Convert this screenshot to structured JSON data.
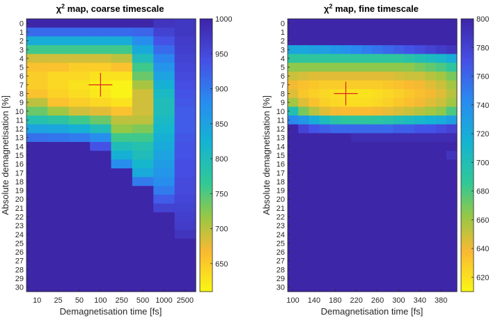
{
  "chart_data": [
    {
      "type": "heatmap",
      "title_symbol": "χ",
      "title_sup": "2",
      "title_rest": " map, coarse timescale",
      "xlabel": "Demagnetisation time [fs]",
      "ylabel": "Absolute demagnetisation [%]",
      "x_ticks": [
        "10",
        "25",
        "50",
        "100",
        "250",
        "500",
        "1000",
        "2500"
      ],
      "y_ticks": [
        "0",
        "1",
        "2",
        "3",
        "4",
        "5",
        "6",
        "7",
        "8",
        "9",
        "10",
        "11",
        "12",
        "13",
        "14",
        "15",
        "16",
        "17",
        "18",
        "19",
        "20",
        "21",
        "22",
        "23",
        "24",
        "25",
        "26",
        "27",
        "28",
        "29",
        "30"
      ],
      "colorbar": {
        "min": 610,
        "max": 1000,
        "ticks": [
          "650",
          "700",
          "750",
          "800",
          "850",
          "900",
          "950",
          "1000"
        ]
      },
      "marker": {
        "x_index": 3,
        "y_index": 7,
        "color": "#e02020"
      },
      "z": [
        [
          1000,
          1000,
          1000,
          1000,
          1000,
          1000,
          980,
          975
        ],
        [
          915,
          915,
          915,
          915,
          915,
          920,
          960,
          975
        ],
        [
          835,
          835,
          835,
          835,
          835,
          880,
          940,
          970
        ],
        [
          760,
          760,
          760,
          760,
          760,
          840,
          915,
          965
        ],
        [
          690,
          690,
          690,
          690,
          700,
          800,
          890,
          960
        ],
        [
          660,
          660,
          650,
          650,
          660,
          760,
          870,
          955
        ],
        [
          650,
          640,
          640,
          630,
          630,
          740,
          850,
          950
        ],
        [
          650,
          640,
          630,
          620,
          615,
          710,
          830,
          945
        ],
        [
          660,
          645,
          635,
          625,
          615,
          690,
          810,
          940
        ],
        [
          700,
          660,
          650,
          640,
          630,
          690,
          800,
          935
        ],
        [
          740,
          715,
          690,
          680,
          660,
          690,
          800,
          930
        ],
        [
          790,
          780,
          760,
          740,
          700,
          700,
          810,
          930
        ],
        [
          850,
          845,
          830,
          800,
          720,
          730,
          820,
          930
        ],
        [
          910,
          905,
          900,
          880,
          760,
          760,
          830,
          935
        ],
        [
          1000,
          1000,
          1000,
          940,
          800,
          790,
          840,
          940
        ],
        [
          1000,
          1000,
          1000,
          1000,
          830,
          800,
          850,
          940
        ],
        [
          1000,
          1000,
          1000,
          1000,
          880,
          820,
          860,
          945
        ],
        [
          1000,
          1000,
          1000,
          1000,
          1000,
          840,
          870,
          945
        ],
        [
          1000,
          1000,
          1000,
          1000,
          1000,
          900,
          880,
          950
        ],
        [
          1000,
          1000,
          1000,
          1000,
          1000,
          1000,
          900,
          950
        ],
        [
          1000,
          1000,
          1000,
          1000,
          1000,
          1000,
          930,
          955
        ],
        [
          1000,
          1000,
          1000,
          1000,
          1000,
          1000,
          960,
          960
        ],
        [
          1000,
          1000,
          1000,
          1000,
          1000,
          1000,
          1000,
          965
        ],
        [
          1000,
          1000,
          1000,
          1000,
          1000,
          1000,
          1000,
          970
        ],
        [
          1000,
          1000,
          1000,
          1000,
          1000,
          1000,
          1000,
          980
        ],
        [
          1000,
          1000,
          1000,
          1000,
          1000,
          1000,
          1000,
          1000
        ],
        [
          1000,
          1000,
          1000,
          1000,
          1000,
          1000,
          1000,
          1000
        ],
        [
          1000,
          1000,
          1000,
          1000,
          1000,
          1000,
          1000,
          1000
        ],
        [
          1000,
          1000,
          1000,
          1000,
          1000,
          1000,
          1000,
          1000
        ],
        [
          1000,
          1000,
          1000,
          1000,
          1000,
          1000,
          1000,
          1000
        ],
        [
          1000,
          1000,
          1000,
          1000,
          1000,
          1000,
          1000,
          1000
        ]
      ]
    },
    {
      "type": "heatmap",
      "title_symbol": "χ",
      "title_sup": "2",
      "title_rest": " map, fine timescale",
      "xlabel": "Demagnetisation time [fs]",
      "ylabel": "Absolute demagnetisation [%]",
      "x_values": [
        100,
        120,
        140,
        160,
        180,
        200,
        220,
        240,
        260,
        280,
        300,
        320,
        340,
        360,
        380,
        400
      ],
      "x_ticks": [
        "100",
        "140",
        "180",
        "220",
        "260",
        "300",
        "340",
        "380"
      ],
      "x_tick_indices": [
        0,
        2,
        4,
        6,
        8,
        10,
        12,
        14
      ],
      "y_ticks": [
        "0",
        "1",
        "2",
        "3",
        "4",
        "5",
        "6",
        "7",
        "8",
        "9",
        "10",
        "11",
        "12",
        "13",
        "14",
        "15",
        "16",
        "17",
        "18",
        "19",
        "20",
        "21",
        "22",
        "23",
        "24",
        "25",
        "26",
        "27",
        "28",
        "29",
        "30"
      ],
      "colorbar": {
        "min": 610,
        "max": 800,
        "ticks": [
          "620",
          "640",
          "660",
          "680",
          "700",
          "720",
          "740",
          "760",
          "780",
          "800"
        ]
      },
      "marker": {
        "x_index": 5,
        "y_index": 8,
        "color": "#e02020"
      },
      "z": [
        [
          800,
          800,
          800,
          800,
          800,
          800,
          800,
          800,
          800,
          800,
          800,
          800,
          800,
          800,
          800,
          800
        ],
        [
          800,
          800,
          800,
          800,
          800,
          800,
          800,
          800,
          800,
          800,
          800,
          800,
          800,
          800,
          800,
          800
        ],
        [
          800,
          800,
          800,
          800,
          800,
          800,
          800,
          800,
          800,
          800,
          800,
          800,
          800,
          800,
          800,
          800
        ],
        [
          725,
          725,
          730,
          730,
          735,
          740,
          745,
          750,
          755,
          760,
          765,
          770,
          775,
          780,
          785,
          790
        ],
        [
          690,
          690,
          690,
          690,
          690,
          690,
          690,
          690,
          690,
          690,
          690,
          695,
          700,
          705,
          710,
          720
        ],
        [
          665,
          665,
          665,
          665,
          665,
          665,
          665,
          665,
          665,
          665,
          665,
          665,
          670,
          675,
          680,
          690
        ],
        [
          650,
          648,
          645,
          645,
          645,
          645,
          645,
          645,
          645,
          645,
          648,
          650,
          650,
          655,
          660,
          670
        ],
        [
          640,
          635,
          632,
          630,
          630,
          630,
          630,
          630,
          630,
          632,
          635,
          638,
          640,
          645,
          650,
          660
        ],
        [
          645,
          632,
          628,
          625,
          622,
          620,
          620,
          620,
          622,
          625,
          628,
          632,
          636,
          640,
          645,
          655
        ],
        [
          660,
          645,
          635,
          628,
          625,
          622,
          622,
          622,
          625,
          628,
          632,
          636,
          640,
          645,
          650,
          660
        ],
        [
          700,
          670,
          655,
          645,
          640,
          638,
          638,
          638,
          640,
          643,
          647,
          650,
          655,
          660,
          665,
          680
        ],
        [
          745,
          735,
          720,
          705,
          695,
          690,
          690,
          690,
          692,
          695,
          700,
          705,
          710,
          715,
          720,
          730
        ],
        [
          800,
          780,
          770,
          765,
          760,
          760,
          760,
          760,
          760,
          760,
          765,
          765,
          770,
          770,
          775,
          780
        ],
        [
          800,
          800,
          800,
          800,
          800,
          800,
          795,
          795,
          795,
          795,
          795,
          795,
          795,
          795,
          795,
          795
        ],
        [
          800,
          800,
          800,
          800,
          800,
          800,
          800,
          800,
          800,
          800,
          800,
          800,
          800,
          800,
          800,
          800
        ],
        [
          800,
          800,
          800,
          800,
          800,
          800,
          800,
          800,
          800,
          800,
          800,
          800,
          800,
          800,
          800,
          790
        ],
        [
          800,
          800,
          800,
          800,
          800,
          800,
          800,
          800,
          800,
          800,
          800,
          800,
          800,
          800,
          800,
          800
        ],
        [
          800,
          800,
          800,
          800,
          800,
          800,
          800,
          800,
          800,
          800,
          800,
          800,
          800,
          800,
          800,
          800
        ],
        [
          800,
          800,
          800,
          800,
          800,
          800,
          800,
          800,
          800,
          800,
          800,
          800,
          800,
          800,
          800,
          800
        ],
        [
          800,
          800,
          800,
          800,
          800,
          800,
          800,
          800,
          800,
          800,
          800,
          800,
          800,
          800,
          800,
          800
        ],
        [
          800,
          800,
          800,
          800,
          800,
          800,
          800,
          800,
          800,
          800,
          800,
          800,
          800,
          800,
          800,
          800
        ],
        [
          800,
          800,
          800,
          800,
          800,
          800,
          800,
          800,
          800,
          800,
          800,
          800,
          800,
          800,
          800,
          800
        ],
        [
          800,
          800,
          800,
          800,
          800,
          800,
          800,
          800,
          800,
          800,
          800,
          800,
          800,
          800,
          800,
          800
        ],
        [
          800,
          800,
          800,
          800,
          800,
          800,
          800,
          800,
          800,
          800,
          800,
          800,
          800,
          800,
          800,
          800
        ],
        [
          800,
          800,
          800,
          800,
          800,
          800,
          800,
          800,
          800,
          800,
          800,
          800,
          800,
          800,
          800,
          800
        ],
        [
          800,
          800,
          800,
          800,
          800,
          800,
          800,
          800,
          800,
          800,
          800,
          800,
          800,
          800,
          800,
          800
        ],
        [
          800,
          800,
          800,
          800,
          800,
          800,
          800,
          800,
          800,
          800,
          800,
          800,
          800,
          800,
          800,
          800
        ],
        [
          800,
          800,
          800,
          800,
          800,
          800,
          800,
          800,
          800,
          800,
          800,
          800,
          800,
          800,
          800,
          800
        ],
        [
          800,
          800,
          800,
          800,
          800,
          800,
          800,
          800,
          800,
          800,
          800,
          800,
          800,
          800,
          800,
          800
        ],
        [
          800,
          800,
          800,
          800,
          800,
          800,
          800,
          800,
          800,
          800,
          800,
          800,
          800,
          800,
          800,
          800
        ],
        [
          800,
          800,
          800,
          800,
          800,
          800,
          800,
          800,
          800,
          800,
          800,
          800,
          800,
          800,
          800,
          800
        ]
      ]
    }
  ]
}
